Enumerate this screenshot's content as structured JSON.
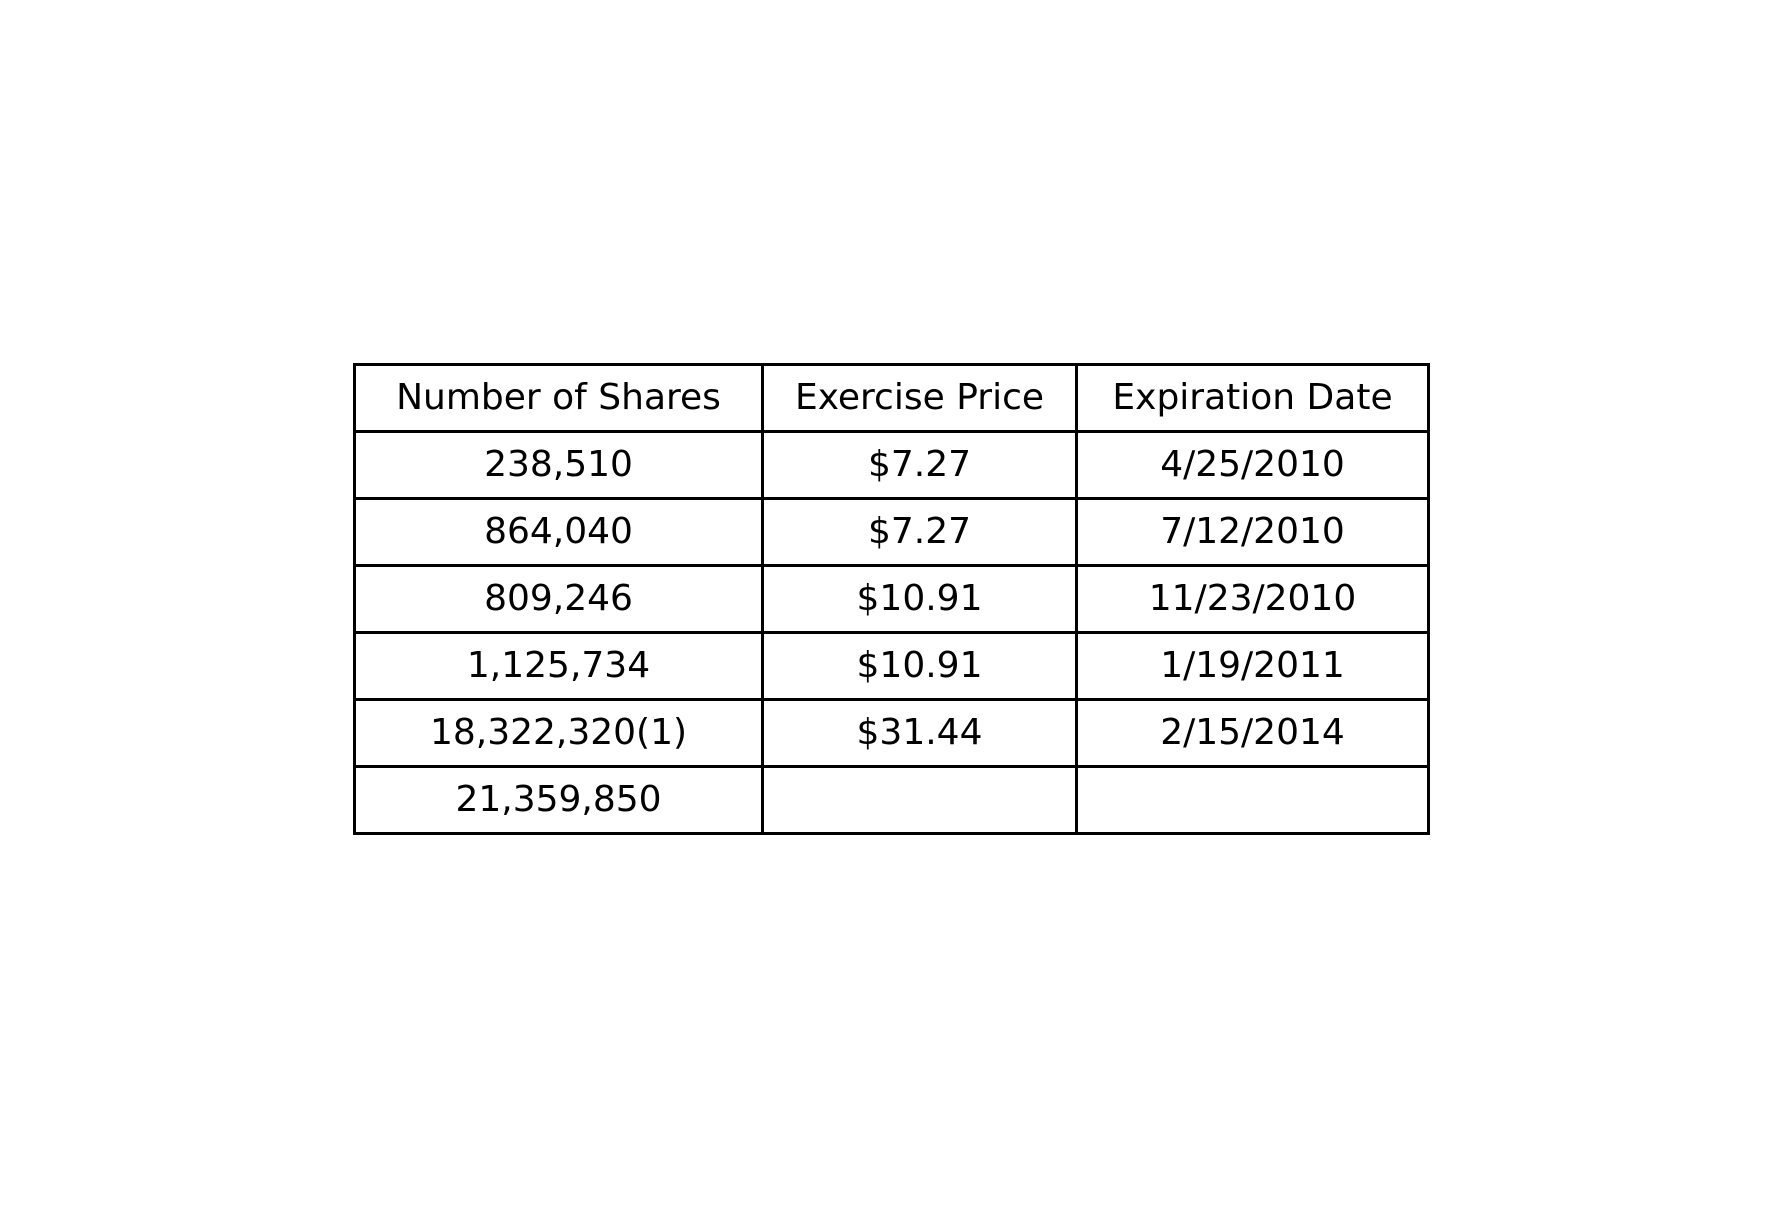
{
  "table": {
    "headers": [
      "Number of Shares",
      "Exercise Price",
      "Expiration Date"
    ],
    "rows": [
      [
        "238,510",
        "$7.27",
        "4/25/2010"
      ],
      [
        "864,040",
        "$7.27",
        "7/12/2010"
      ],
      [
        "809,246",
        "$10.91",
        "11/23/2010"
      ],
      [
        "1,125,734",
        "$10.91",
        "1/19/2011"
      ],
      [
        "18,322,320(1)",
        "$31.44",
        "2/15/2014"
      ],
      [
        "21,359,850",
        "",
        ""
      ]
    ]
  }
}
